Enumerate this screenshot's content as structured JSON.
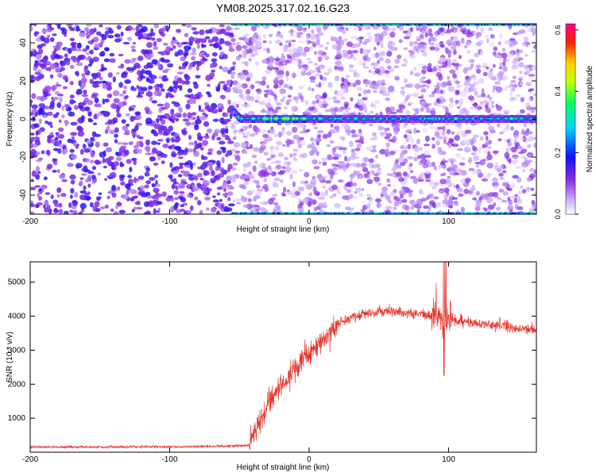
{
  "figure_title": "YM08.2025.317.02.16.G23",
  "chart_data": [
    {
      "type": "heatmap",
      "name": "spectrogram",
      "xlabel": "Height of straight line (km)",
      "ylabel": "Frequency (Hz)",
      "xlim": [
        -200,
        163
      ],
      "ylim": [
        -50,
        50
      ],
      "xticks": [
        -200,
        -100,
        0,
        100
      ],
      "yticks": [
        -40,
        -20,
        0,
        20,
        40
      ],
      "colorbar": {
        "label": "Normalized spectral amplitude",
        "range": [
          0.0,
          0.62
        ],
        "ticks": [
          0.0,
          0.2,
          0.4,
          0.6
        ],
        "colors": [
          "#ffffff",
          "#8a2be2",
          "#0000ff",
          "#00ffff",
          "#00ff00",
          "#ffff00",
          "#ff0000",
          "#ff00aa"
        ]
      },
      "features": [
        {
          "name": "noise_region",
          "x_range": [
            -200,
            -55
          ],
          "amplitude": "moderate uniform noise"
        },
        {
          "name": "carrier_line",
          "freq_hz": 0,
          "x_start": -55,
          "x_end": 163,
          "peak_amplitude": 0.5
        },
        {
          "name": "edge_line_top",
          "freq_hz": 50,
          "x_start": -55,
          "x_end": 163
        },
        {
          "name": "edge_line_bottom",
          "freq_hz": -50,
          "x_start": -55,
          "x_end": 163
        }
      ]
    },
    {
      "type": "line",
      "name": "snr",
      "xlabel": "Height of straight line (km)",
      "ylabel": "SNR (10 * v/v)",
      "xlim": [
        -200,
        163
      ],
      "ylim": [
        0,
        5600
      ],
      "xticks": [
        -200,
        -100,
        0,
        100
      ],
      "yticks": [
        1000,
        2000,
        3000,
        4000,
        5000
      ],
      "color": "#e8342c",
      "series": [
        {
          "name": "SNR trend",
          "x": [
            -200,
            -150,
            -100,
            -60,
            -43,
            -40,
            -35,
            -30,
            -20,
            -10,
            0,
            10,
            20,
            30,
            40,
            50,
            60,
            70,
            80,
            90,
            95,
            97,
            100,
            110,
            120,
            130,
            140,
            150,
            163
          ],
          "y": [
            150,
            150,
            160,
            180,
            200,
            500,
            900,
            1400,
            2000,
            2450,
            2950,
            3300,
            3750,
            3950,
            4050,
            4100,
            4150,
            4100,
            4080,
            4050,
            4000,
            3600,
            3950,
            3850,
            3800,
            3750,
            3700,
            3650,
            3600
          ]
        }
      ]
    }
  ]
}
